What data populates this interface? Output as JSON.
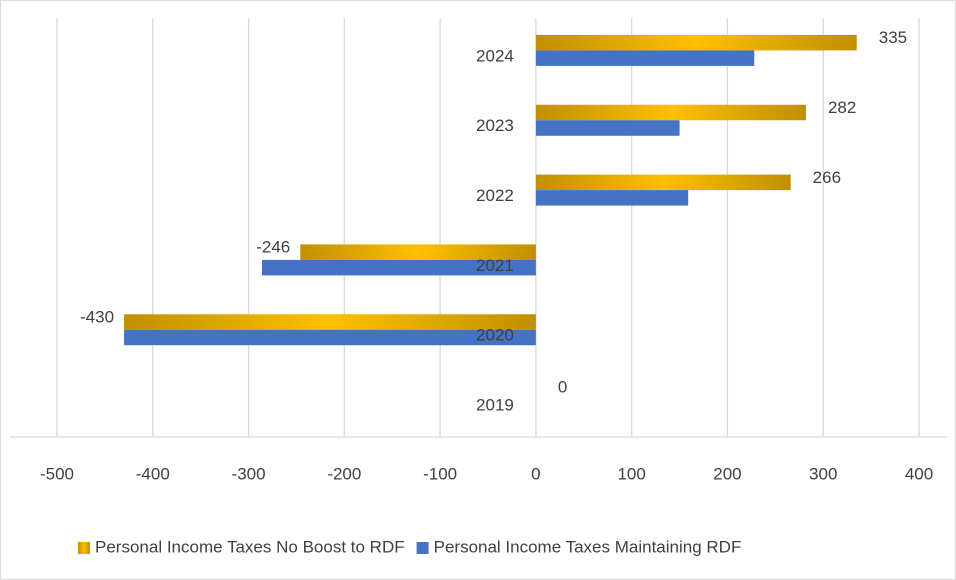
{
  "chart_data": {
    "type": "bar",
    "orientation": "horizontal",
    "categories": [
      "2019",
      "2020",
      "2021",
      "2022",
      "2023",
      "2024"
    ],
    "series": [
      {
        "name": "Personal Income Taxes No Boost to RDF",
        "color": "#bf9000",
        "values": [
          0,
          -430,
          -246,
          266,
          282,
          335
        ]
      },
      {
        "name": "Personal Income Taxes Maintaining RDF",
        "color": "#4472c4",
        "values": [
          0,
          -430,
          -286,
          159,
          150,
          228
        ]
      }
    ],
    "xlim": [
      -500,
      400
    ],
    "xticks": [
      -500,
      -400,
      -300,
      -200,
      -100,
      0,
      100,
      200,
      300,
      400
    ],
    "grid": true,
    "legend": "bottom",
    "data_labels_series": 0
  }
}
